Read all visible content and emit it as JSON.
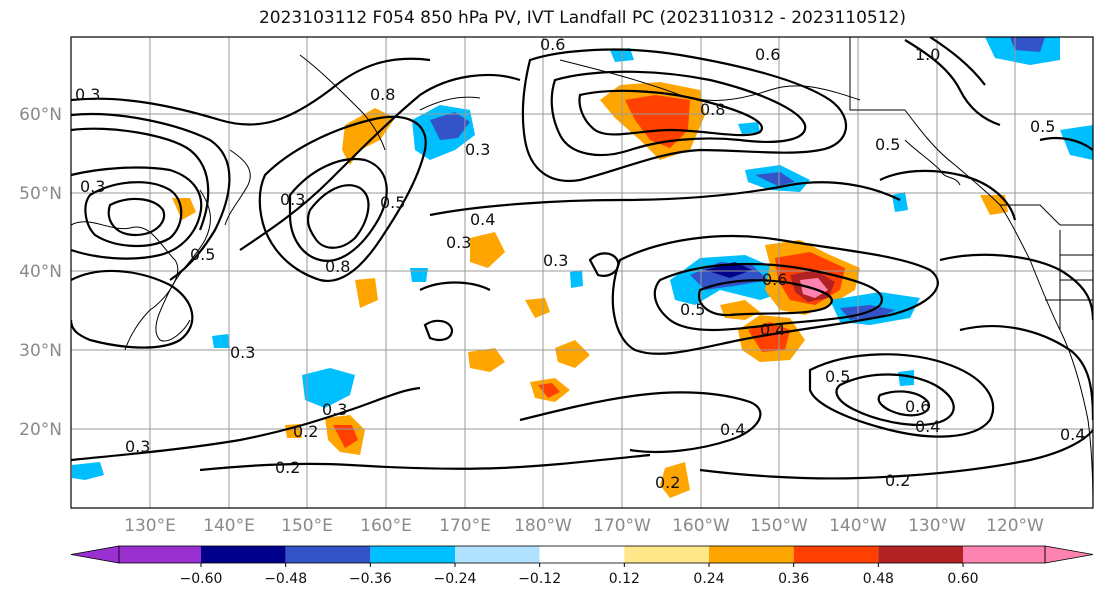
{
  "title": "2023103112 F054 850 hPa PV, IVT Landfall PC (2023110312 - 2023110512)",
  "latitude_labels": [
    "60°N",
    "50°N",
    "40°N",
    "30°N",
    "20°N"
  ],
  "longitude_labels": [
    "130°E",
    "140°E",
    "150°E",
    "160°E",
    "170°E",
    "180°W",
    "170°W",
    "160°W",
    "150°W",
    "140°W",
    "130°W",
    "120°W"
  ],
  "contour_labels": [
    "0.6",
    "0.6",
    "1.0",
    "0.8",
    "0.5",
    "0.5",
    "0.3",
    "0.3",
    "0.8",
    "0.5",
    "0.4",
    "0.3",
    "0.3",
    "0.8",
    "0.5",
    "0.3",
    "0.6",
    "0.5",
    "0.4",
    "0.5",
    "0.6",
    "0.4",
    "0.3",
    "0.3",
    "0.2",
    "0.2",
    "0.2",
    "0.4",
    "0.2",
    "0.4",
    "0.3",
    "0.3"
  ],
  "colorbar": {
    "ticks": [
      "−0.60",
      "−0.48",
      "−0.36",
      "−0.24",
      "−0.12",
      "0.12",
      "0.24",
      "0.36",
      "0.48",
      "0.60"
    ],
    "colors": [
      "#9b30d0",
      "#00008b",
      "#3353c8",
      "#00bfff",
      "#b0e2ff",
      "#ffffff",
      "#ffe78a",
      "#ffa500",
      "#ff4000",
      "#b22222",
      "#ff83b0",
      "#ff83b0"
    ]
  }
}
